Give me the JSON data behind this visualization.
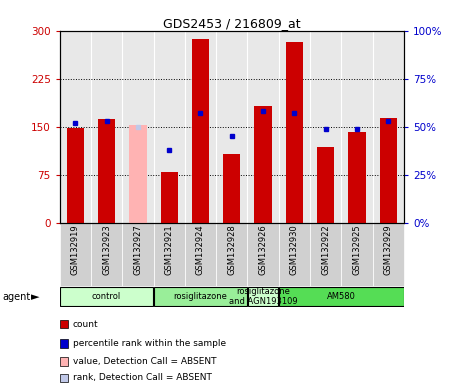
{
  "title": "GDS2453 / 216809_at",
  "samples": [
    "GSM132919",
    "GSM132923",
    "GSM132927",
    "GSM132921",
    "GSM132924",
    "GSM132928",
    "GSM132926",
    "GSM132930",
    "GSM132922",
    "GSM132925",
    "GSM132929"
  ],
  "bar_values": [
    148,
    162,
    152,
    80,
    287,
    107,
    183,
    282,
    118,
    142,
    163
  ],
  "bar_colors": [
    "#cc0000",
    "#cc0000",
    "#ffb3b3",
    "#cc0000",
    "#cc0000",
    "#cc0000",
    "#cc0000",
    "#cc0000",
    "#cc0000",
    "#cc0000",
    "#cc0000"
  ],
  "rank_values": [
    52,
    53,
    50,
    38,
    57,
    45,
    58,
    57,
    49,
    49,
    53
  ],
  "rank_colors": [
    "#0000cc",
    "#0000cc",
    "#c0c8e8",
    "#0000cc",
    "#0000cc",
    "#0000cc",
    "#0000cc",
    "#0000cc",
    "#0000cc",
    "#0000cc",
    "#0000cc"
  ],
  "ylim_left": [
    0,
    300
  ],
  "ylim_right": [
    0,
    100
  ],
  "yticks_left": [
    0,
    75,
    150,
    225,
    300
  ],
  "yticks_right": [
    0,
    25,
    50,
    75,
    100
  ],
  "ytick_labels_left": [
    "0",
    "75",
    "150",
    "225",
    "300"
  ],
  "ytick_labels_right": [
    "0%",
    "25%",
    "50%",
    "75%",
    "100%"
  ],
  "groups": [
    {
      "label": "control",
      "start": 0,
      "end": 3,
      "color": "#ccffcc"
    },
    {
      "label": "rosiglitazone",
      "start": 3,
      "end": 6,
      "color": "#99ee99"
    },
    {
      "label": "rosiglitazone\nand AGN193109",
      "start": 6,
      "end": 7,
      "color": "#ccffcc"
    },
    {
      "label": "AM580",
      "start": 7,
      "end": 11,
      "color": "#55dd55"
    }
  ],
  "legend_items": [
    {
      "color": "#cc0000",
      "label": "count"
    },
    {
      "color": "#0000cc",
      "label": "percentile rank within the sample"
    },
    {
      "color": "#ffb3b3",
      "label": "value, Detection Call = ABSENT"
    },
    {
      "color": "#c0c8e8",
      "label": "rank, Detection Call = ABSENT"
    }
  ],
  "left_tick_color": "#cc0000",
  "right_tick_color": "#0000cc",
  "bar_width": 0.55,
  "plot_bg": "#e8e8e8"
}
